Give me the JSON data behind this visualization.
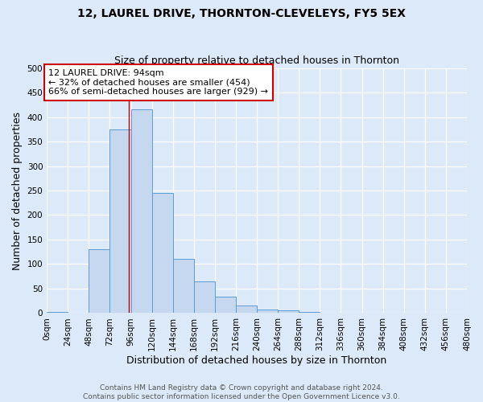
{
  "title_line1": "12, LAUREL DRIVE, THORNTON-CLEVELEYS, FY5 5EX",
  "title_line2": "Size of property relative to detached houses in Thornton",
  "xlabel": "Distribution of detached houses by size in Thornton",
  "ylabel": "Number of detached properties",
  "footnote": "Contains HM Land Registry data © Crown copyright and database right 2024.\nContains public sector information licensed under the Open Government Licence v3.0.",
  "bin_edges": [
    0,
    24,
    48,
    72,
    96,
    120,
    144,
    168,
    192,
    216,
    240,
    264,
    288,
    312,
    336,
    360,
    384,
    408,
    432,
    456,
    480
  ],
  "bar_heights": [
    3,
    0,
    130,
    375,
    415,
    245,
    110,
    65,
    33,
    15,
    8,
    5,
    3,
    1,
    1,
    1,
    0,
    0,
    1,
    0
  ],
  "bar_color": "#c5d8f0",
  "bar_edge_color": "#5b9bd5",
  "background_color": "#dce9f8",
  "grid_color": "#ffffff",
  "red_line_x": 94,
  "annotation_text": "12 LAUREL DRIVE: 94sqm\n← 32% of detached houses are smaller (454)\n66% of semi-detached houses are larger (929) →",
  "annotation_box_color": "#ffffff",
  "annotation_box_edge": "#cc0000",
  "ylim": [
    0,
    500
  ],
  "yticks": [
    0,
    50,
    100,
    150,
    200,
    250,
    300,
    350,
    400,
    450,
    500
  ],
  "xtick_labels": [
    "0sqm",
    "24sqm",
    "48sqm",
    "72sqm",
    "96sqm",
    "120sqm",
    "144sqm",
    "168sqm",
    "192sqm",
    "216sqm",
    "240sqm",
    "264sqm",
    "288sqm",
    "312sqm",
    "336sqm",
    "360sqm",
    "384sqm",
    "408sqm",
    "432sqm",
    "456sqm",
    "480sqm"
  ],
  "title_fontsize": 10,
  "subtitle_fontsize": 9,
  "xlabel_fontsize": 9,
  "ylabel_fontsize": 9,
  "tick_fontsize": 7.5,
  "footnote_fontsize": 6.5,
  "annot_fontsize": 8
}
